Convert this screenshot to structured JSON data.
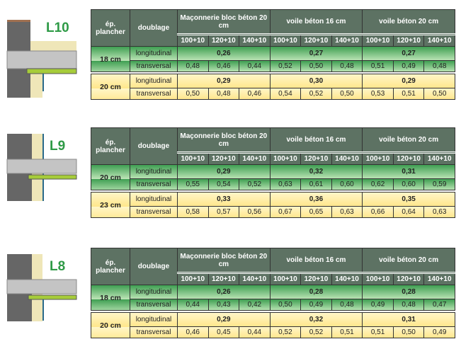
{
  "headers": {
    "ep": "ép. plancher",
    "doublage": "doublage",
    "groups": [
      "Maçonnerie bloc béton 20 cm",
      "voile béton 16 cm",
      "voile béton 20 cm"
    ],
    "sub": [
      "100+10",
      "120+10",
      "140+10"
    ]
  },
  "tables": [
    {
      "label": "L10",
      "rows": [
        {
          "ep": "18 cm",
          "color": "green",
          "long": "longitudinal",
          "trans": "transversal",
          "long_vals": [
            "0,26",
            "0,27",
            "0,27"
          ],
          "trans_vals": [
            "0,48",
            "0,46",
            "0,44",
            "0,52",
            "0,50",
            "0,48",
            "0,51",
            "0,49",
            "0,48"
          ]
        },
        {
          "ep": "20 cm",
          "color": "yellow",
          "long": "longitudinal",
          "trans": "transversal",
          "long_vals": [
            "0,29",
            "0,30",
            "0,29"
          ],
          "trans_vals": [
            "0,50",
            "0,48",
            "0,46",
            "0,54",
            "0,52",
            "0,50",
            "0,53",
            "0,51",
            "0,50"
          ]
        }
      ]
    },
    {
      "label": "L9",
      "rows": [
        {
          "ep": "20 cm",
          "color": "green",
          "long": "longitudinal",
          "trans": "transversal",
          "long_vals": [
            "0,29",
            "0,32",
            "0,31"
          ],
          "trans_vals": [
            "0,55",
            "0,54",
            "0,52",
            "0,63",
            "0,61",
            "0,60",
            "0,62",
            "0,60",
            "0,59"
          ]
        },
        {
          "ep": "23 cm",
          "color": "yellow",
          "long": "longitudinal",
          "trans": "transversal",
          "long_vals": [
            "0,33",
            "0,36",
            "0,35"
          ],
          "trans_vals": [
            "0,58",
            "0,57",
            "0,56",
            "0,67",
            "0,65",
            "0,63",
            "0,66",
            "0,64",
            "0,63"
          ]
        }
      ]
    },
    {
      "label": "L8",
      "rows": [
        {
          "ep": "18 cm",
          "color": "green",
          "long": "longitudinal",
          "trans": "transversal",
          "long_vals": [
            "0,26",
            "0,28",
            "0,28"
          ],
          "trans_vals": [
            "0,44",
            "0,43",
            "0,42",
            "0,50",
            "0,49",
            "0,48",
            "0,49",
            "0,48",
            "0,47"
          ]
        },
        {
          "ep": "20 cm",
          "color": "yellow",
          "long": "longitudinal",
          "trans": "transversal",
          "long_vals": [
            "0,29",
            "0,32",
            "0,31"
          ],
          "trans_vals": [
            "0,46",
            "0,45",
            "0,44",
            "0,52",
            "0,52",
            "0,51",
            "0,51",
            "0,50",
            "0,49"
          ]
        }
      ]
    }
  ],
  "colors": {
    "header": "#5d7263",
    "green": "#3f9f52",
    "yellow": "#ffe68a",
    "label": "#2e9a46"
  }
}
